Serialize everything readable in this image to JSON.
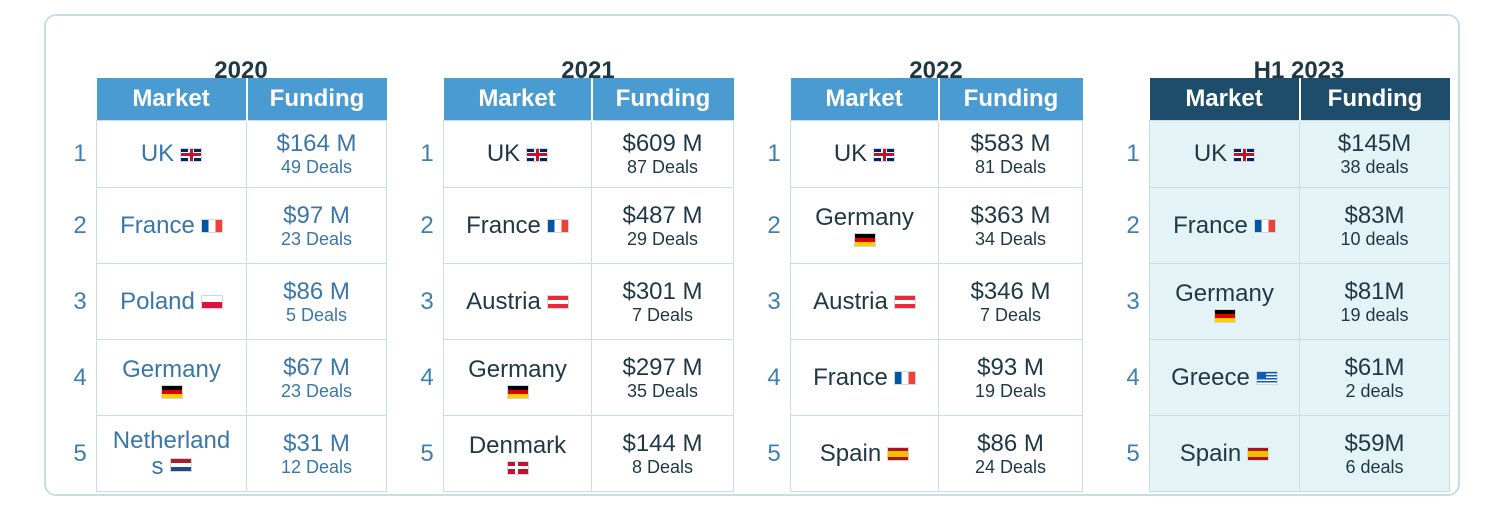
{
  "header": {
    "market": "Market",
    "funding": "Funding"
  },
  "ranks": [
    "1",
    "2",
    "3",
    "4",
    "5"
  ],
  "blocks": [
    {
      "year": "2020",
      "rows": [
        {
          "market": "UK",
          "flag": "flag-uk",
          "amount": "$164 M",
          "deals": "49 Deals"
        },
        {
          "market": "France",
          "flag": "flag-fr",
          "amount": "$97 M",
          "deals": "23 Deals"
        },
        {
          "market": "Poland",
          "flag": "flag-pl",
          "amount": "$86 M",
          "deals": "5 Deals"
        },
        {
          "market": "Germany",
          "flag": "flag-de",
          "amount": "$67 M",
          "deals": "23 Deals"
        },
        {
          "market": "Netherland",
          "market2": "s",
          "flag": "flag-nl",
          "amount": "$31 M",
          "deals": "12 Deals"
        }
      ]
    },
    {
      "year": "2021",
      "rows": [
        {
          "market": "UK",
          "flag": "flag-uk",
          "amount": "$609 M",
          "deals": "87 Deals"
        },
        {
          "market": "France",
          "flag": "flag-fr",
          "amount": "$487 M",
          "deals": "29 Deals"
        },
        {
          "market": "Austria",
          "flag": "flag-at",
          "amount": "$301 M",
          "deals": "7 Deals"
        },
        {
          "market": "Germany",
          "flag": "flag-de",
          "amount": "$297 M",
          "deals": "35 Deals"
        },
        {
          "market": "Denmark",
          "flag": "flag-dk",
          "amount": "$144 M",
          "deals": "8 Deals"
        }
      ]
    },
    {
      "year": "2022",
      "rows": [
        {
          "market": "UK",
          "flag": "flag-uk",
          "amount": "$583 M",
          "deals": "81 Deals"
        },
        {
          "market": "Germany",
          "flag": "flag-de",
          "amount": "$363 M",
          "deals": "34 Deals"
        },
        {
          "market": "Austria",
          "flag": "flag-at",
          "amount": "$346 M",
          "deals": "7 Deals"
        },
        {
          "market": "France",
          "flag": "flag-fr",
          "amount": "$93 M",
          "deals": "19 Deals"
        },
        {
          "market": "Spain",
          "flag": "flag-es",
          "amount": "$86 M",
          "deals": "24 Deals"
        }
      ]
    },
    {
      "year": "H1 2023",
      "rows": [
        {
          "market": "UK",
          "flag": "flag-uk",
          "amount": "$145M",
          "deals": "38 deals"
        },
        {
          "market": "France",
          "flag": "flag-fr",
          "amount": "$83M",
          "deals": "10 deals"
        },
        {
          "market": "Germany",
          "flag": "flag-de",
          "amount": "$81M",
          "deals": "19 deals"
        },
        {
          "market": "Greece",
          "flag": "flag-gr",
          "amount": "$61M",
          "deals": "2 deals"
        },
        {
          "market": "Spain",
          "flag": "flag-es",
          "amount": "$59M",
          "deals": "6 deals"
        }
      ]
    }
  ]
}
